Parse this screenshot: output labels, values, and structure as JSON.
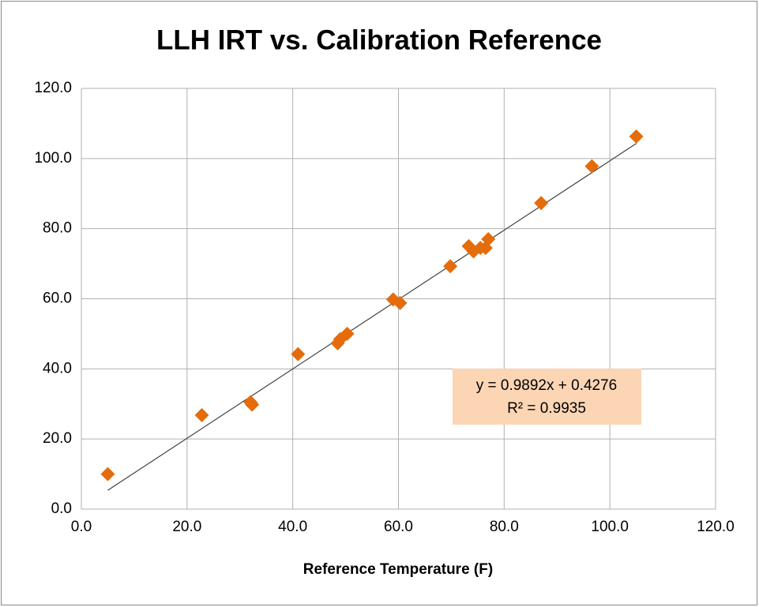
{
  "chart_data": {
    "type": "scatter",
    "title": "LLH IRT vs. Calibration Reference",
    "x_label": "Reference Temperature (F)",
    "series": [
      {
        "color": "#e46c0a",
        "x": [
          5,
          22.8,
          32,
          32.3,
          41,
          48.5,
          49,
          50.3,
          59,
          60.3,
          69.8,
          73.3,
          74.2,
          75.5,
          76.5,
          77,
          87,
          96.6,
          105
        ],
        "values": [
          10,
          26.8,
          30.5,
          29.8,
          44.2,
          47.3,
          48.5,
          50,
          59.8,
          58.8,
          69.3,
          75,
          73.5,
          74.5,
          74.5,
          77,
          87.3,
          97.8,
          106.3
        ]
      }
    ],
    "trendline": {
      "slope": 0.9892,
      "intercept": 0.4276,
      "color": "#404040",
      "equation": "y = 0.9892x + 0.4276",
      "r_squared": "R² = 0.9935",
      "label_fill": "#fcd5b5"
    },
    "xlim": [
      0,
      120
    ],
    "ylim": [
      0,
      120
    ],
    "xticks": [
      {
        "value": 0,
        "label": "0.0"
      },
      {
        "value": 20,
        "label": "20.0"
      },
      {
        "value": 40,
        "label": "40.0"
      },
      {
        "value": 60,
        "label": "60.0"
      },
      {
        "value": 80,
        "label": "80.0"
      },
      {
        "value": 100,
        "label": "100.0"
      },
      {
        "value": 120,
        "label": "120.0"
      }
    ],
    "yticks": [
      {
        "value": 0,
        "label": "0.0"
      },
      {
        "value": 20,
        "label": "20.0"
      },
      {
        "value": 40,
        "label": "40.0"
      },
      {
        "value": 60,
        "label": "60.0"
      },
      {
        "value": 80,
        "label": "80.0"
      },
      {
        "value": 100,
        "label": "100.0"
      },
      {
        "value": 120,
        "label": "120.0"
      }
    ],
    "grid": true
  }
}
